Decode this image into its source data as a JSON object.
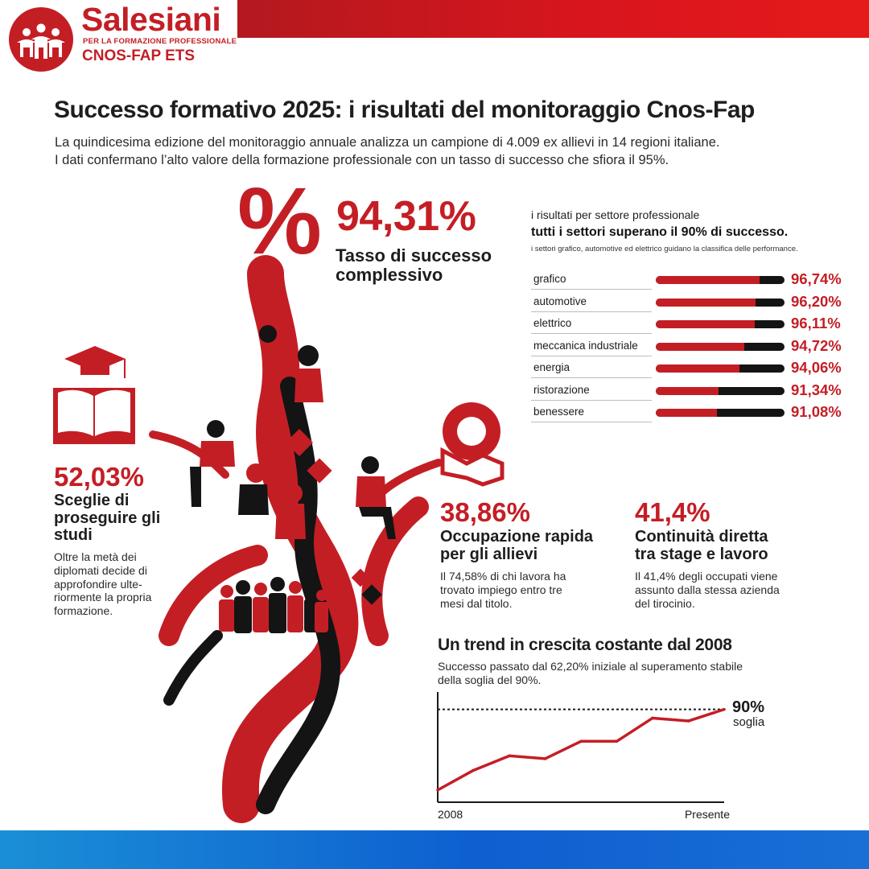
{
  "header": {
    "brand": "Salesiani",
    "tagline": "PER LA FORMAZIONE PROFESSIONALE",
    "organization": "CNOS-FAP ETS",
    "brand_color": "#c41e25"
  },
  "title": "Successo formativo 2025: i risultati del monitoraggio Cnos-Fap",
  "intro": [
    "La quindicesima edizione del monitoraggio annuale analizza un campione di 4.009 ex allievi in 14 regioni italiane.",
    "I dati confermano l’alto valore della formazione professionale con un tasso di successo che sfiora il 95%."
  ],
  "headline": {
    "symbol": "%",
    "value": "94,31%",
    "label": "Tasso di successo complessivo"
  },
  "sectors": {
    "kicker": "i risultati per settore professionale",
    "headline": "tutti i settori superano il 90% di successo.",
    "note": "i settori grafico, automotive ed elettrico guidano la classifica delle performance."
  },
  "stats": {
    "studies": {
      "value": "52,03%",
      "title": "Sceglie di proseguire gli studi",
      "description": "Oltre la metà dei diplomati decide di approfondire ulte-riormente la propria formazione."
    },
    "employment": {
      "value": "38,86%",
      "title": "Occupazione rapida per gli allievi",
      "description": "Il 74,58% di chi lavora ha trovato impiego entro tre mesi dal titolo."
    },
    "stage": {
      "value": "41,4%",
      "title": "Continuità diretta tra stage e lavoro",
      "description": "Il 41,4% degli occupati viene assunto dalla stessa azienda del tirocinio."
    }
  },
  "trend": {
    "title": "Un trend in crescita costante dal 2008",
    "description": "Successo passato dal 62,20% iniziale al superamento stabile della soglia del 90%.",
    "threshold_value": "90%",
    "threshold_label": "soglia",
    "x_start_label": "2008",
    "x_end_label": "Presente"
  },
  "colors": {
    "accent": "#c41e25",
    "dark": "#141414",
    "bottom_bar": "#0e5fd0"
  },
  "chart_data": [
    {
      "type": "bar",
      "title": "i risultati per settore professionale",
      "categories": [
        "grafico",
        "automotive",
        "elettrico",
        "meccanica industriale",
        "energia",
        "ristorazione",
        "benessere"
      ],
      "values": [
        96.74,
        96.2,
        96.11,
        94.72,
        94.06,
        91.34,
        91.08
      ],
      "value_labels": [
        "96,74%",
        "96,20%",
        "96,11%",
        "94,72%",
        "94,06%",
        "91,34%",
        "91,08%"
      ],
      "unit": "%",
      "orientation": "horizontal",
      "grid": false
    },
    {
      "type": "line",
      "title": "Un trend in crescita costante dal 2008",
      "x_labels": [
        "2008",
        "Presente"
      ],
      "values": [
        62.2,
        69,
        74,
        73,
        79,
        79,
        87,
        86,
        90
      ],
      "threshold": 90,
      "ylim": [
        58,
        96
      ],
      "grid": false
    }
  ]
}
